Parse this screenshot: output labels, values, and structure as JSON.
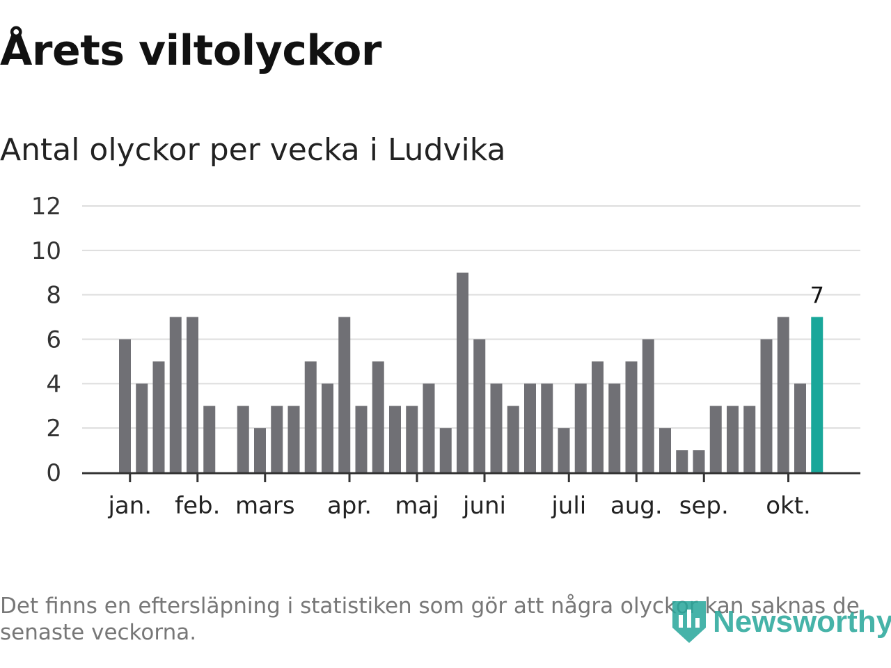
{
  "title": "Årets viltolyckor",
  "subtitle": "Antal olyckor per vecka i Ludvika",
  "footnote": "Det finns en eftersläpning i statistiken som gör att några olyckor kan saknas de senaste veckorna.",
  "brand": {
    "name": "Newsworthy",
    "color": "#26a69a",
    "icon": "bar-chart-shield-icon"
  },
  "chart_data": {
    "type": "bar",
    "ylim": [
      0,
      12
    ],
    "yticks": [
      0,
      2,
      4,
      6,
      8,
      10,
      12
    ],
    "grid": true,
    "xlabel": "",
    "ylabel": "",
    "bar_color": "#707075",
    "highlight_color": "#19a79a",
    "highlight_index": 41,
    "highlight_label": "7",
    "values": [
      6,
      4,
      5,
      7,
      7,
      3,
      0,
      3,
      2,
      3,
      3,
      5,
      4,
      7,
      3,
      5,
      3,
      3,
      4,
      2,
      9,
      6,
      4,
      3,
      4,
      4,
      2,
      4,
      5,
      4,
      5,
      6,
      2,
      1,
      1,
      3,
      3,
      3,
      6,
      7,
      4,
      7
    ],
    "month_ticks": [
      {
        "label": "jan.",
        "position": 0.3
      },
      {
        "label": "feb.",
        "position": 4.3
      },
      {
        "label": "mars",
        "position": 8.3
      },
      {
        "label": "apr.",
        "position": 13.3
      },
      {
        "label": "maj",
        "position": 17.3
      },
      {
        "label": "juni",
        "position": 21.3
      },
      {
        "label": "juli",
        "position": 26.3
      },
      {
        "label": "aug.",
        "position": 30.3
      },
      {
        "label": "sep.",
        "position": 34.3
      },
      {
        "label": "okt.",
        "position": 39.3
      }
    ]
  }
}
